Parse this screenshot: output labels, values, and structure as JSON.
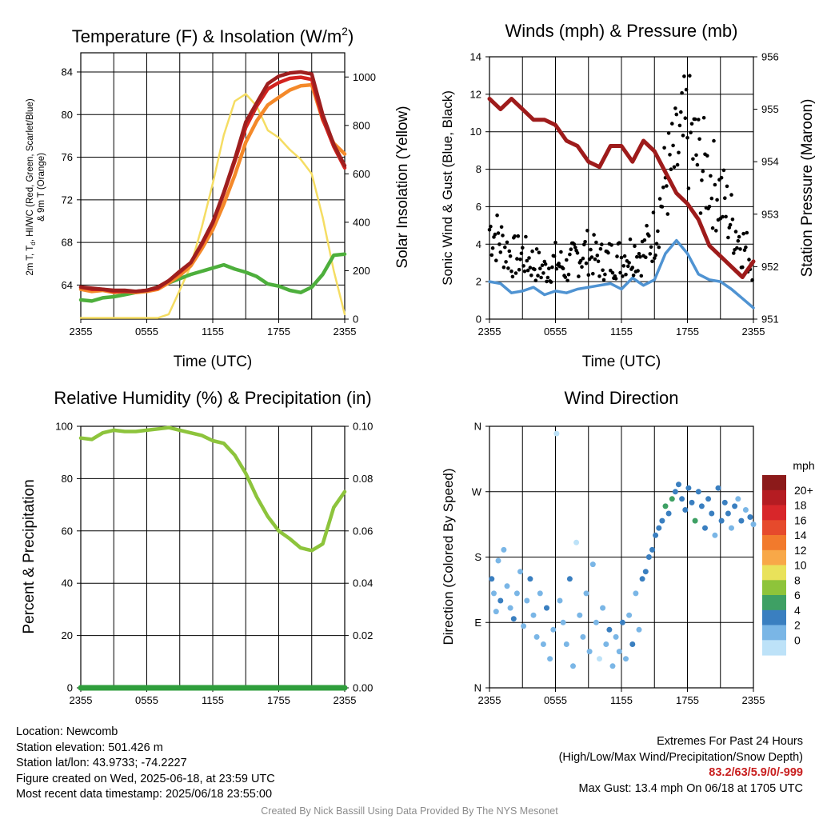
{
  "chart_data": [
    {
      "type": "line",
      "title": "Temperature (F) & Insolation (W/m",
      "title_superscript": "2",
      "title_suffix": ")",
      "ylabel_line1": "2m T, T",
      "ylabel_sub": "d",
      "ylabel_line1_rest": ", HI/WC (Red, Green, Scarlet/Blue)",
      "ylabel_line2": "& 9m T (Orange)",
      "y2label": "Solar Insolation (Yellow)",
      "xlabel": "Time (UTC)",
      "xticks": [
        "2355",
        "0555",
        "1155",
        "1755",
        "2355"
      ],
      "ylim": [
        60.8,
        85.8
      ],
      "yticks": [
        64,
        68,
        72,
        76,
        80,
        84
      ],
      "y2lim": [
        0,
        1100
      ],
      "y2ticks": [
        0,
        200,
        400,
        600,
        800,
        1000
      ],
      "x_hours": [
        0,
        1,
        2,
        3,
        4,
        5,
        6,
        7,
        8,
        9,
        10,
        11,
        12,
        13,
        14,
        15,
        16,
        17,
        18,
        19,
        20,
        21,
        22,
        23,
        24
      ],
      "series": [
        {
          "color": "#4daf3c",
          "values": [
            62.6,
            62.5,
            62.8,
            62.9,
            63.1,
            63.3,
            63.5,
            63.8,
            64.2,
            64.6,
            65.0,
            65.3,
            65.6,
            65.9,
            65.5,
            65.2,
            64.8,
            64.1,
            63.9,
            63.5,
            63.3,
            63.8,
            65.0,
            66.8,
            66.9
          ]
        },
        {
          "color": "#f4892a",
          "values": [
            63.6,
            63.4,
            63.5,
            63.3,
            63.4,
            63.3,
            63.4,
            63.6,
            64.2,
            64.9,
            65.8,
            67.4,
            69.2,
            71.6,
            74.3,
            77.4,
            79.4,
            80.9,
            81.6,
            82.3,
            82.7,
            82.8,
            79.5,
            77.3,
            76.3
          ]
        },
        {
          "color": "#d3231f",
          "values": [
            63.8,
            63.6,
            63.6,
            63.4,
            63.4,
            63.4,
            63.5,
            63.7,
            64.4,
            65.2,
            66.1,
            67.8,
            69.8,
            72.6,
            75.6,
            78.8,
            80.8,
            82.4,
            83.0,
            83.4,
            83.5,
            83.3,
            79.6,
            77.0,
            75.0
          ]
        },
        {
          "color": "#9e1f1f",
          "values": [
            63.8,
            63.7,
            63.6,
            63.5,
            63.5,
            63.4,
            63.5,
            63.8,
            64.4,
            65.3,
            66.1,
            67.9,
            69.9,
            72.7,
            75.8,
            79.3,
            81.1,
            82.9,
            83.6,
            83.9,
            84.0,
            83.8,
            80.0,
            77.2,
            75.2
          ]
        }
      ],
      "insolation": {
        "color": "#f5dd63",
        "values": [
          5,
          5,
          5,
          5,
          5,
          5,
          5,
          5,
          20,
          120,
          220,
          380,
          560,
          760,
          900,
          930,
          880,
          780,
          750,
          700,
          660,
          600,
          420,
          200,
          20
        ]
      }
    },
    {
      "type": "line",
      "title": "Winds (mph) & Pressure (mb)",
      "ylabel": "Sonic Wind & Gust (Blue, Black)",
      "y2label": "Station Pressure (Maroon)",
      "xlabel": "Time (UTC)",
      "xticks": [
        "2355",
        "0555",
        "1155",
        "1755",
        "2355"
      ],
      "ylim": [
        0,
        14
      ],
      "yticks": [
        0,
        2,
        4,
        6,
        8,
        10,
        12,
        14
      ],
      "y2lim": [
        951,
        956
      ],
      "y2ticks": [
        951,
        952,
        953,
        954,
        955,
        956
      ],
      "x_hours": [
        0,
        1,
        2,
        3,
        4,
        5,
        6,
        7,
        8,
        9,
        10,
        11,
        12,
        13,
        14,
        15,
        16,
        17,
        18,
        19,
        20,
        21,
        22,
        23,
        24
      ],
      "wind": {
        "color": "#4f93d2",
        "values": [
          2.0,
          1.9,
          1.4,
          1.5,
          1.7,
          1.3,
          1.5,
          1.4,
          1.6,
          1.7,
          1.8,
          1.9,
          1.6,
          2.2,
          1.8,
          2.1,
          3.5,
          4.2,
          3.5,
          2.4,
          2.1,
          2.0,
          1.6,
          1.1,
          0.6
        ]
      },
      "gust": {
        "color": "#000000",
        "values": [
          4.8,
          4.2,
          3.3,
          3.4,
          3.0,
          2.6,
          3.1,
          2.7,
          3.4,
          3.6,
          3.1,
          3.2,
          3.3,
          3.6,
          3.5,
          4.6,
          7.4,
          8.6,
          10.1,
          8.4,
          7.6,
          6.6,
          5.2,
          4.0,
          3.0
        ]
      },
      "pressure": {
        "color": "#9e1b1b",
        "values": [
          955.2,
          955.0,
          955.2,
          955.0,
          954.8,
          954.8,
          954.7,
          954.4,
          954.3,
          954.0,
          953.9,
          954.3,
          954.3,
          954.0,
          954.4,
          954.2,
          953.8,
          953.4,
          953.2,
          952.9,
          952.4,
          952.2,
          952.0,
          951.8,
          952.1
        ]
      }
    },
    {
      "type": "line",
      "title": "Relative Humidity (%) & Precipitation (in)",
      "ylabel": "Percent & Precipitation",
      "xticks": [
        "2355",
        "0555",
        "1155",
        "1755",
        "2355"
      ],
      "ylim": [
        0,
        100
      ],
      "yticks": [
        0,
        20,
        40,
        60,
        80,
        100
      ],
      "y2lim": [
        0,
        0.1
      ],
      "y2ticks": [
        "0.00",
        "0.02",
        "0.04",
        "0.06",
        "0.08",
        "0.10"
      ],
      "x_hours": [
        0,
        1,
        2,
        3,
        4,
        5,
        6,
        7,
        8,
        9,
        10,
        11,
        12,
        13,
        14,
        15,
        16,
        17,
        18,
        19,
        20,
        21,
        22,
        23,
        24
      ],
      "rh": {
        "color": "#8dc43c",
        "values": [
          95.5,
          95.0,
          97.5,
          98.5,
          98.0,
          98.0,
          98.5,
          99.0,
          99.5,
          98.5,
          97.5,
          96.5,
          94.5,
          93.5,
          89.0,
          82.0,
          73.0,
          65.5,
          60.0,
          57.0,
          53.5,
          52.5,
          55.0,
          69.0,
          75.0
        ]
      },
      "precip": {
        "color": "#2f9e3c",
        "values": [
          0,
          0,
          0,
          0,
          0,
          0,
          0,
          0,
          0,
          0,
          0,
          0,
          0,
          0,
          0,
          0,
          0,
          0,
          0,
          0,
          0,
          0,
          0,
          0,
          0
        ]
      }
    },
    {
      "type": "scatter",
      "title": "Wind Direction",
      "ylabel": "Direction (Colored By Speed)",
      "xticks": [
        "2355",
        "0555",
        "1155",
        "1755",
        "2355"
      ],
      "ylim": [
        0,
        360
      ],
      "yticks": [
        "N",
        "E",
        "S",
        "W",
        "N"
      ],
      "x_hours": [
        0,
        1,
        2,
        3,
        4,
        5,
        6,
        7,
        8,
        9,
        10,
        11,
        12,
        13,
        14,
        15,
        16,
        17,
        18,
        19,
        20,
        21,
        22,
        23,
        24
      ],
      "direction_points": [
        [
          0.2,
          150
        ],
        [
          0.4,
          130
        ],
        [
          0.6,
          105
        ],
        [
          0.8,
          175
        ],
        [
          1.0,
          120
        ],
        [
          1.3,
          190
        ],
        [
          1.6,
          140
        ],
        [
          1.9,
          110
        ],
        [
          2.2,
          95
        ],
        [
          2.5,
          130
        ],
        [
          2.8,
          160
        ],
        [
          3.1,
          85
        ],
        [
          3.4,
          120
        ],
        [
          3.7,
          150
        ],
        [
          4.0,
          100
        ],
        [
          4.3,
          70
        ],
        [
          4.6,
          130
        ],
        [
          4.9,
          60
        ],
        [
          5.2,
          110
        ],
        [
          5.5,
          40
        ],
        [
          5.8,
          80
        ],
        [
          6.1,
          350
        ],
        [
          6.4,
          120
        ],
        [
          6.7,
          90
        ],
        [
          7.0,
          60
        ],
        [
          7.3,
          150
        ],
        [
          7.6,
          30
        ],
        [
          7.9,
          200
        ],
        [
          8.2,
          100
        ],
        [
          8.5,
          70
        ],
        [
          8.8,
          130
        ],
        [
          9.1,
          50
        ],
        [
          9.4,
          170
        ],
        [
          9.7,
          90
        ],
        [
          10.0,
          40
        ],
        [
          10.3,
          110
        ],
        [
          10.6,
          60
        ],
        [
          10.9,
          80
        ],
        [
          11.2,
          30
        ],
        [
          11.5,
          70
        ],
        [
          11.8,
          50
        ],
        [
          12.1,
          90
        ],
        [
          12.4,
          40
        ],
        [
          12.7,
          100
        ],
        [
          13.0,
          60
        ],
        [
          13.3,
          130
        ],
        [
          13.6,
          80
        ],
        [
          13.9,
          150
        ],
        [
          14.2,
          160
        ],
        [
          14.5,
          180
        ],
        [
          14.8,
          190
        ],
        [
          15.1,
          210
        ],
        [
          15.4,
          220
        ],
        [
          15.7,
          230
        ],
        [
          16.0,
          250
        ],
        [
          16.3,
          240
        ],
        [
          16.6,
          260
        ],
        [
          16.9,
          270
        ],
        [
          17.2,
          280
        ],
        [
          17.5,
          260
        ],
        [
          17.8,
          245
        ],
        [
          18.1,
          275
        ],
        [
          18.4,
          255
        ],
        [
          18.7,
          230
        ],
        [
          19.0,
          270
        ],
        [
          19.3,
          250
        ],
        [
          19.6,
          220
        ],
        [
          19.9,
          260
        ],
        [
          20.2,
          240
        ],
        [
          20.5,
          210
        ],
        [
          20.8,
          275
        ],
        [
          21.1,
          230
        ],
        [
          21.4,
          255
        ],
        [
          21.7,
          240
        ],
        [
          22.0,
          220
        ],
        [
          22.3,
          250
        ],
        [
          22.6,
          260
        ],
        [
          22.9,
          230
        ],
        [
          23.3,
          245
        ],
        [
          23.7,
          235
        ],
        [
          24.0,
          225
        ]
      ],
      "direction_speeds": [
        3,
        2,
        1,
        2,
        3,
        1,
        2,
        2,
        3,
        1,
        2,
        1,
        2,
        3,
        1,
        2,
        2,
        1,
        3,
        2,
        1,
        0,
        2,
        1,
        2,
        3,
        1,
        0,
        2,
        1,
        2,
        1,
        2,
        1,
        0,
        2,
        1,
        3,
        1,
        2,
        2,
        3,
        1,
        2,
        3,
        1,
        2,
        3,
        4,
        3,
        4,
        3,
        4,
        4,
        5,
        4,
        6,
        4,
        3,
        4,
        3,
        4,
        4,
        5,
        3,
        4,
        3,
        4,
        3,
        2,
        3,
        4,
        3,
        3,
        2,
        3,
        2,
        3,
        2,
        3,
        2
      ],
      "colorbar": {
        "title": "mph",
        "labels": [
          "20+",
          "18",
          "16",
          "14",
          "12",
          "10",
          "8",
          "6",
          "4",
          "2",
          "0"
        ],
        "colors": [
          "#8c1a1a",
          "#b51c22",
          "#d8262a",
          "#e64a2c",
          "#f27a2c",
          "#f8a848",
          "#e9e25a",
          "#8ec43a",
          "#3ea064",
          "#3a7fc0",
          "#7ab6e6",
          "#bde2f8"
        ]
      }
    }
  ],
  "info": {
    "location": "Location: Newcomb",
    "elevation": "Station elevation: 501.426 m",
    "latlon": "Station lat/lon: 43.9733; -74.2227",
    "created": "Figure created on Wed, 2025-06-18, at 23:59 UTC",
    "recent": "Most recent data timestamp: 2025/06/18 23:55:00"
  },
  "extremes": {
    "heading": "Extremes For Past 24 Hours",
    "subheading": "(High/Low/Max Wind/Precipitation/Snow Depth)",
    "values": "83.2/63/5.9/0/-999",
    "gust": "Max Gust: 13.4 mph On 06/18 at 1705 UTC"
  },
  "credit": "Created By Nick Bassill Using Data Provided By The NYS Mesonet"
}
